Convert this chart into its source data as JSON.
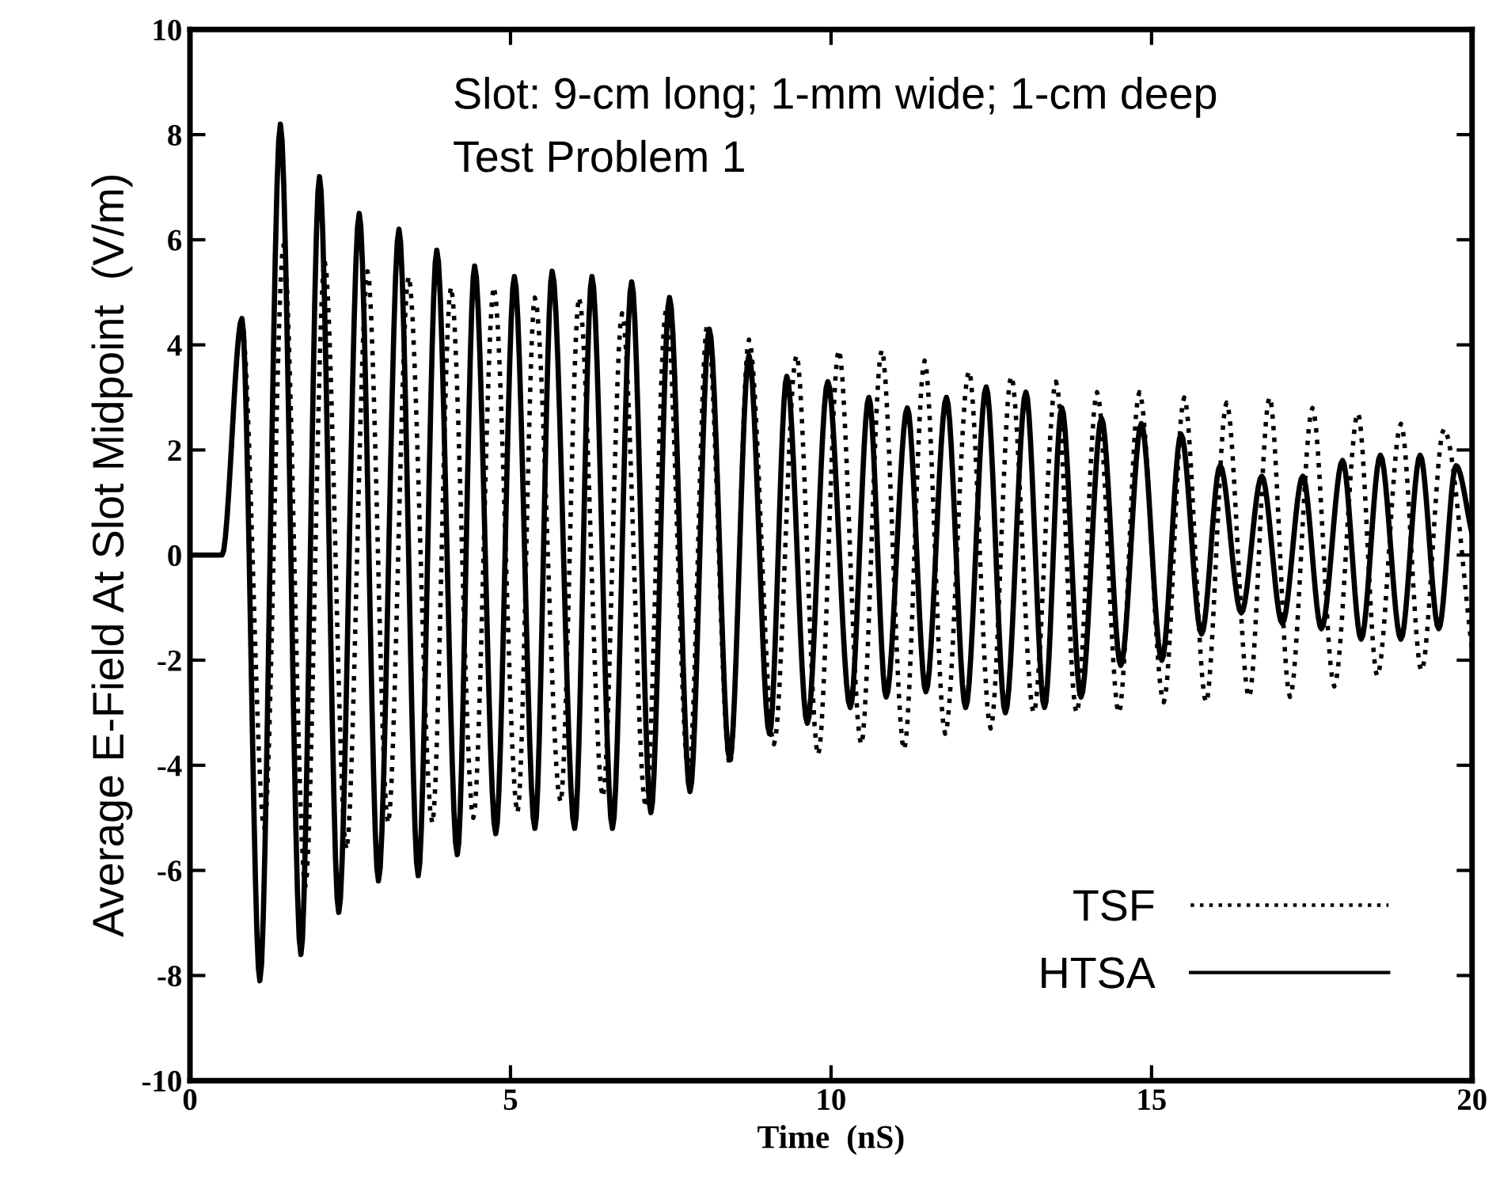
{
  "chart_data": {
    "type": "line",
    "xlabel": "Time  (nS)",
    "ylabel": "Average E-Field At Slot Midpoint  (V/m)",
    "annotations": [
      "Slot: 9-cm long; 1-mm wide; 1-cm deep",
      "Test Problem 1"
    ],
    "xlim": [
      0,
      20
    ],
    "ylim": [
      -10,
      10
    ],
    "xticks": [
      0,
      5,
      10,
      15,
      20
    ],
    "yticks": [
      -10,
      -8,
      -6,
      -4,
      -2,
      0,
      2,
      4,
      6,
      8,
      10
    ],
    "grid": false,
    "legend": "bottom right",
    "marker": "none",
    "series": [
      {
        "name": "TSF",
        "color": "#000000",
        "line_style": "dotted",
        "x": [
          0,
          0.5,
          0.81,
          1.16,
          1.46,
          1.8,
          2.1,
          2.44,
          2.77,
          3.09,
          3.41,
          3.78,
          4.07,
          4.42,
          4.74,
          5.11,
          5.38,
          5.78,
          6.07,
          6.44,
          6.74,
          7.11,
          7.43,
          7.78,
          8.07,
          8.42,
          8.72,
          9.11,
          9.46,
          9.8,
          10.12,
          10.47,
          10.79,
          11.14,
          11.46,
          11.78,
          12.15,
          12.49,
          12.81,
          13.16,
          13.51,
          13.83,
          14.15,
          14.49,
          14.81,
          15.19,
          15.51,
          15.85,
          16.17,
          16.52,
          16.84,
          17.16,
          17.51,
          17.85,
          18.22,
          18.52,
          18.89,
          19.21,
          19.56,
          20
        ],
        "values": [
          0,
          0,
          4.4,
          -5.2,
          5.9,
          -6.3,
          5.6,
          -5.6,
          5.4,
          -5.1,
          5.3,
          -5.1,
          5.1,
          -5.0,
          5.1,
          -4.9,
          4.9,
          -4.7,
          4.9,
          -4.6,
          4.6,
          -4.8,
          4.7,
          -4.2,
          4.4,
          -4.0,
          4.1,
          -3.6,
          3.8,
          -3.8,
          3.9,
          -3.6,
          3.9,
          -3.7,
          3.7,
          -3.4,
          3.5,
          -3.3,
          3.4,
          -3.0,
          3.3,
          -3.0,
          3.1,
          -3.0,
          3.1,
          -2.8,
          3.0,
          -2.8,
          2.9,
          -2.7,
          3.0,
          -2.7,
          2.8,
          -2.5,
          2.7,
          -2.3,
          2.5,
          -2.2,
          2.4,
          -1.8
        ]
      },
      {
        "name": "HTSA",
        "color": "#000000",
        "line_style": "solid",
        "x": [
          0,
          0.5,
          0.81,
          1.09,
          1.41,
          1.73,
          2.02,
          2.32,
          2.64,
          2.94,
          3.26,
          3.56,
          3.85,
          4.17,
          4.44,
          4.77,
          5.06,
          5.38,
          5.65,
          6.0,
          6.27,
          6.59,
          6.89,
          7.19,
          7.48,
          7.8,
          8.1,
          8.42,
          8.72,
          9.04,
          9.31,
          9.63,
          9.95,
          10.3,
          10.59,
          10.86,
          11.19,
          11.48,
          11.8,
          12.1,
          12.42,
          12.72,
          13.04,
          13.33,
          13.6,
          13.9,
          14.22,
          14.52,
          14.84,
          15.16,
          15.46,
          15.78,
          16.07,
          16.4,
          16.72,
          17.04,
          17.36,
          17.65,
          17.98,
          18.27,
          18.57,
          18.89,
          19.19,
          19.48,
          19.75,
          20
        ],
        "values": [
          0,
          0,
          4.5,
          -8.1,
          8.2,
          -7.6,
          7.2,
          -6.8,
          6.5,
          -6.2,
          6.2,
          -6.1,
          5.8,
          -5.7,
          5.5,
          -5.3,
          5.3,
          -5.2,
          5.4,
          -5.2,
          5.3,
          -5.2,
          5.2,
          -4.9,
          4.9,
          -4.5,
          4.3,
          -3.9,
          3.8,
          -3.4,
          3.4,
          -3.2,
          3.3,
          -2.9,
          3.0,
          -2.7,
          2.8,
          -2.6,
          3.0,
          -2.9,
          3.2,
          -3.0,
          3.1,
          -2.9,
          2.8,
          -2.7,
          2.6,
          -2.1,
          2.5,
          -2.0,
          2.3,
          -1.5,
          1.7,
          -1.1,
          1.5,
          -1.3,
          1.5,
          -1.4,
          1.8,
          -1.6,
          1.9,
          -1.6,
          1.9,
          -1.4,
          1.7,
          0.4
        ]
      }
    ]
  }
}
